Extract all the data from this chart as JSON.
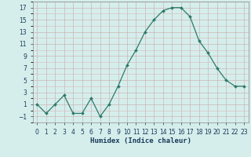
{
  "x": [
    0,
    1,
    2,
    3,
    4,
    5,
    6,
    7,
    8,
    9,
    10,
    11,
    12,
    13,
    14,
    15,
    16,
    17,
    18,
    19,
    20,
    21,
    22,
    23
  ],
  "y": [
    1,
    -0.5,
    1,
    2.5,
    -0.5,
    -0.5,
    2,
    -1,
    1,
    4,
    7.5,
    10,
    13,
    15,
    16.5,
    17,
    17,
    15.5,
    11.5,
    9.5,
    7,
    5,
    4,
    4
  ],
  "line_color": "#2d7a6a",
  "marker_color": "#2d7a6a",
  "bg_color": "#d5eeec",
  "grid_color_major": "#c8a8a8",
  "grid_color_minor": "#d8b8b8",
  "xlabel": "Humidex (Indice chaleur)",
  "xlim": [
    -0.5,
    23.5
  ],
  "ylim": [
    -2,
    18
  ],
  "yticks": [
    -1,
    1,
    3,
    5,
    7,
    9,
    11,
    13,
    15,
    17
  ],
  "xtick_labels": [
    "0",
    "1",
    "2",
    "3",
    "4",
    "5",
    "6",
    "7",
    "8",
    "9",
    "10",
    "11",
    "12",
    "13",
    "14",
    "15",
    "16",
    "17",
    "18",
    "19",
    "20",
    "21",
    "22",
    "23"
  ],
  "font_color": "#1a3a5a",
  "tick_fontsize": 5.5,
  "xlabel_fontsize": 6.5
}
